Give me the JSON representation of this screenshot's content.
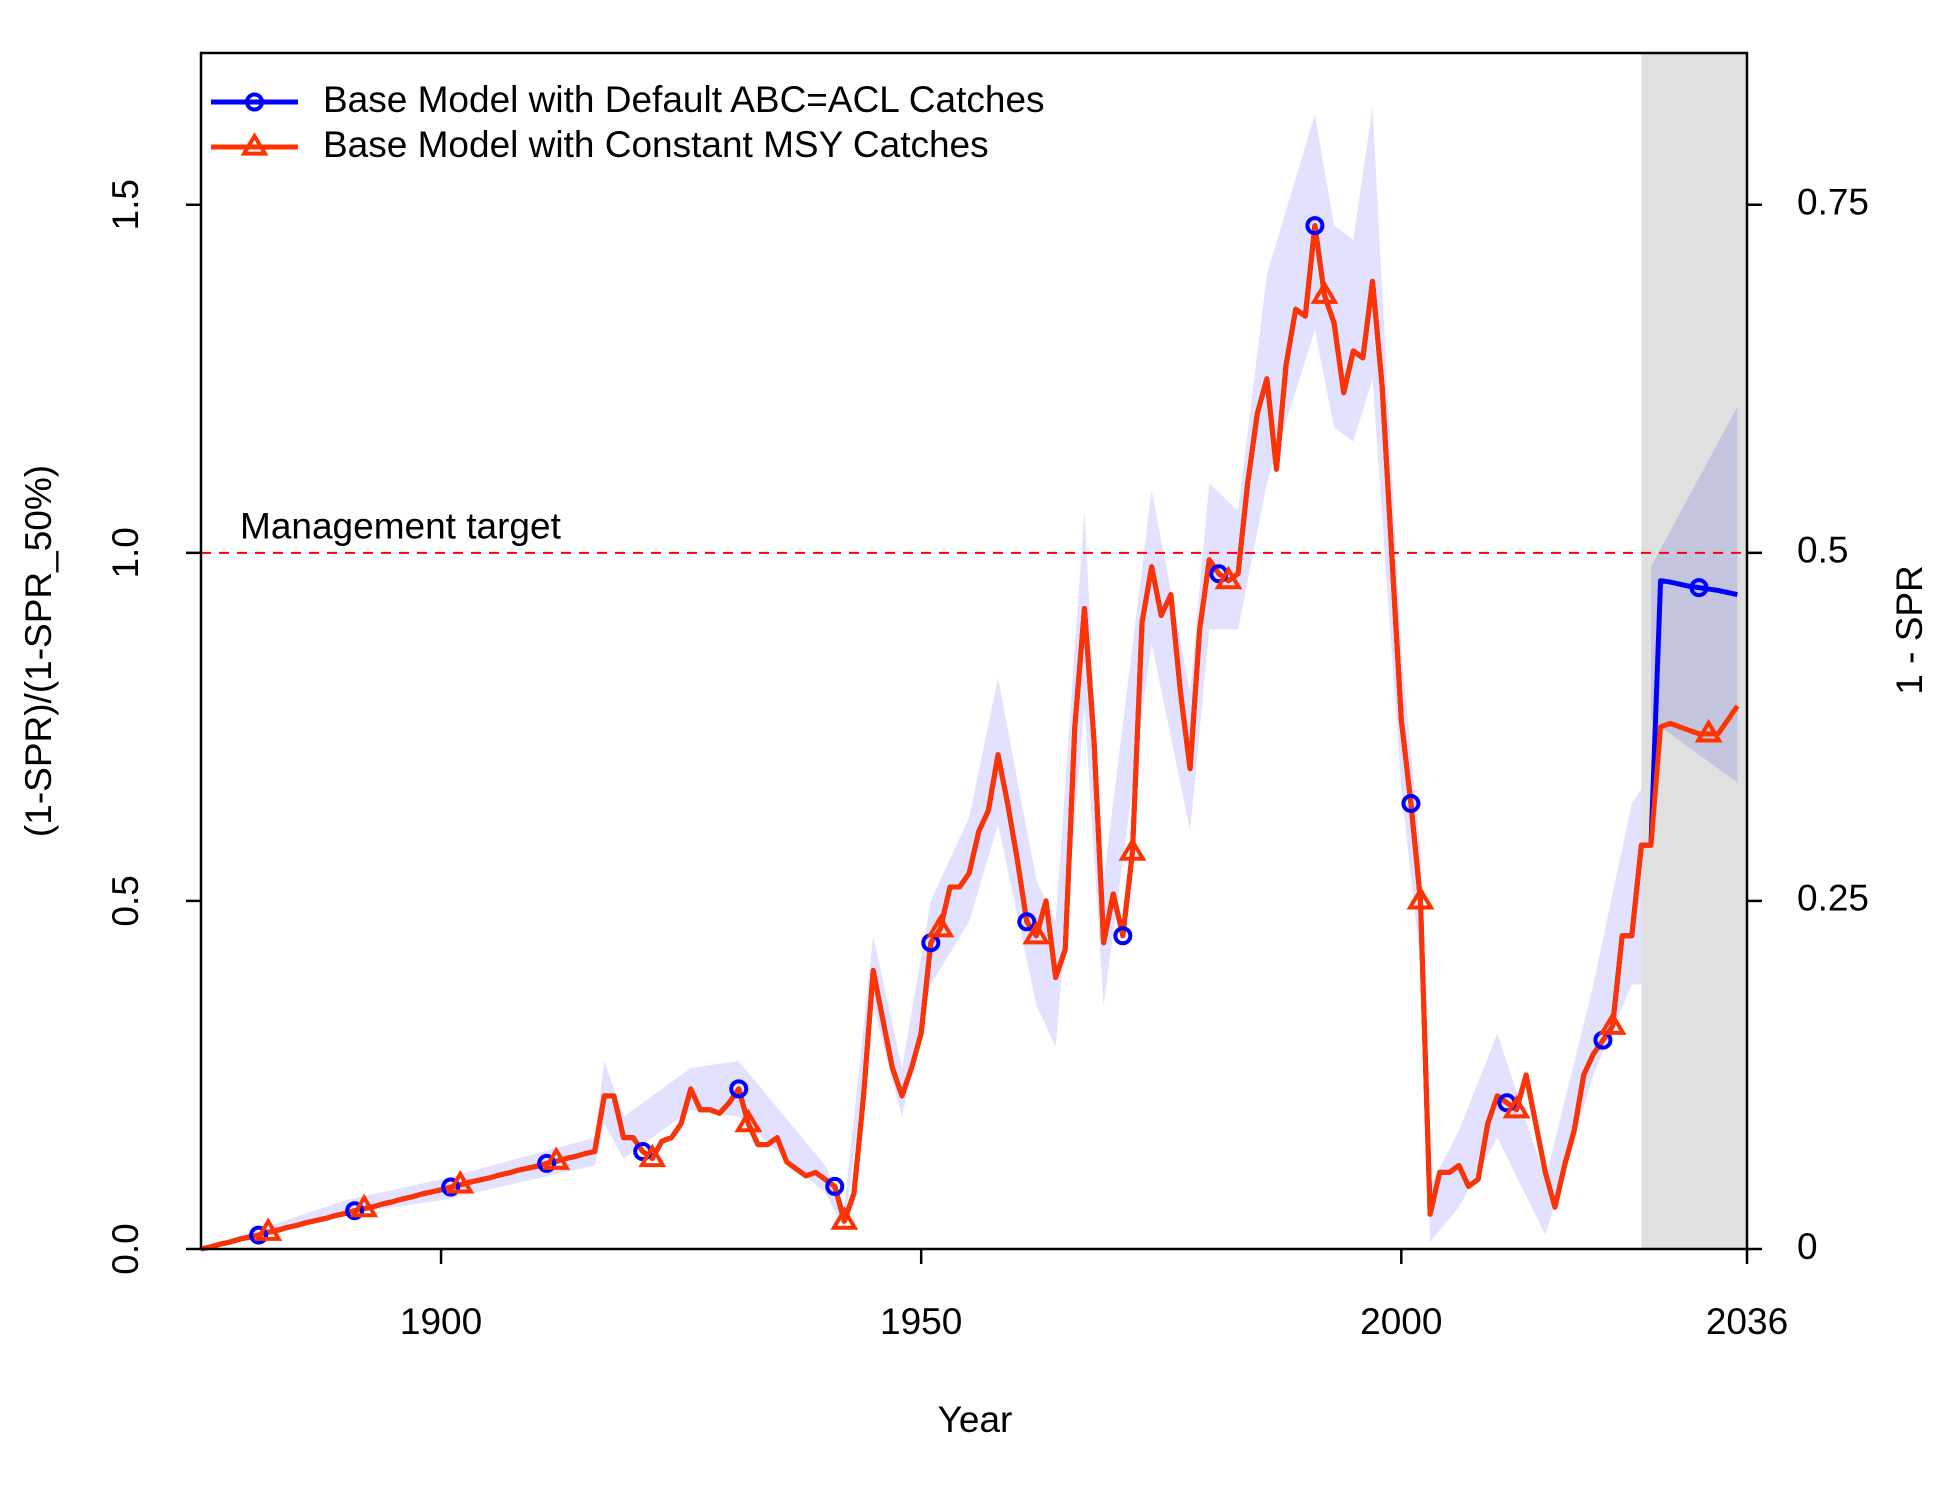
{
  "chart_data": {
    "type": "line",
    "xlabel": "Year",
    "ylabel": "(1-SPR)/(1-SPR_50%)",
    "y2label": "1 - SPR",
    "xlim": [
      1875,
      2036
    ],
    "ylim": [
      0,
      1.718
    ],
    "y2lim": [
      0,
      0.859
    ],
    "xticks": [
      1900,
      1950,
      2000,
      2036
    ],
    "yticks": [
      {
        "value": 0,
        "label": "0.0"
      },
      0.5,
      {
        "value": 1,
        "label": "1.0"
      },
      1.5
    ],
    "y2ticks": [
      0,
      0.25,
      0.5,
      0.75
    ],
    "forecast_start": 2025,
    "forecast_color": "#e0e0e0",
    "reference_line": {
      "value": 1,
      "label": "Management target",
      "color": "#ff0000"
    },
    "legend": "top-left",
    "intervals": [
      {
        "color": "#e2e2ff",
        "x": [
          1875,
          1890,
          1900,
          1916,
          1917,
          1919,
          1926,
          1931,
          1940,
          1942,
          1945,
          1948,
          1951,
          1955,
          1958,
          1962,
          1964,
          1967,
          1969,
          1974,
          1978,
          1980,
          1983,
          1986,
          1991,
          1993,
          1995,
          1997,
          2000,
          2002,
          2003,
          2006,
          2010,
          2015,
          2020,
          2024,
          2025
        ],
        "lower": [
          0,
          0.05,
          0.07,
          0.12,
          0.18,
          0.13,
          0.2,
          0.19,
          0.08,
          0.03,
          0.35,
          0.19,
          0.38,
          0.47,
          0.61,
          0.35,
          0.29,
          0.78,
          0.35,
          0.87,
          0.6,
          0.89,
          0.89,
          1.1,
          1.32,
          1.18,
          1.16,
          1.25,
          0.66,
          0.41,
          0.01,
          0.06,
          0.16,
          0.02,
          0.25,
          0.38,
          0.38
        ],
        "upper": [
          0,
          0.07,
          0.1,
          0.16,
          0.27,
          0.19,
          0.26,
          0.27,
          0.12,
          0.06,
          0.45,
          0.26,
          0.5,
          0.62,
          0.82,
          0.53,
          0.47,
          1.06,
          0.53,
          1.09,
          0.8,
          1.1,
          1.06,
          1.4,
          1.63,
          1.47,
          1.45,
          1.64,
          0.86,
          0.57,
          0.09,
          0.17,
          0.31,
          0.1,
          0.38,
          0.64,
          0.66
        ]
      },
      {
        "color": "#b8bcdc",
        "x": [
          2026,
          2035
        ],
        "lower": [
          0.76,
          0.67
        ],
        "upper": [
          0.98,
          1.21
        ]
      }
    ],
    "x": [
      1875,
      1876,
      1877,
      1878,
      1879,
      1880,
      1881,
      1882,
      1883,
      1884,
      1885,
      1886,
      1887,
      1888,
      1889,
      1890,
      1891,
      1892,
      1893,
      1894,
      1895,
      1896,
      1897,
      1898,
      1899,
      1900,
      1901,
      1902,
      1903,
      1904,
      1905,
      1906,
      1907,
      1908,
      1909,
      1910,
      1911,
      1912,
      1913,
      1914,
      1915,
      1916,
      1917,
      1918,
      1919,
      1920,
      1921,
      1922,
      1923,
      1924,
      1925,
      1926,
      1927,
      1928,
      1929,
      1930,
      1931,
      1932,
      1933,
      1934,
      1935,
      1936,
      1937,
      1938,
      1939,
      1940,
      1941,
      1942,
      1943,
      1944,
      1945,
      1946,
      1947,
      1948,
      1949,
      1950,
      1951,
      1952,
      1953,
      1954,
      1955,
      1956,
      1957,
      1958,
      1959,
      1960,
      1961,
      1962,
      1963,
      1964,
      1965,
      1966,
      1967,
      1968,
      1969,
      1970,
      1971,
      1972,
      1973,
      1974,
      1975,
      1976,
      1977,
      1978,
      1979,
      1980,
      1981,
      1982,
      1983,
      1984,
      1985,
      1986,
      1987,
      1988,
      1989,
      1990,
      1991,
      1992,
      1993,
      1994,
      1995,
      1996,
      1997,
      1998,
      1999,
      2000,
      2001,
      2002,
      2003,
      2004,
      2005,
      2006,
      2007,
      2008,
      2009,
      2010,
      2011,
      2012,
      2013,
      2014,
      2015,
      2016,
      2017,
      2018,
      2019,
      2020,
      2021,
      2022,
      2023,
      2024,
      2025,
      2026,
      2027,
      2028,
      2029,
      2030,
      2031,
      2032,
      2033,
      2034,
      2035
    ],
    "series": [
      {
        "name": "Base Model with Default ABC=ACL Catches",
        "color": "#0000ff",
        "marker": "circle",
        "values": [
          0,
          0.003,
          0.007,
          0.01,
          0.014,
          0.017,
          0.02,
          0.024,
          0.027,
          0.031,
          0.034,
          0.038,
          0.041,
          0.044,
          0.048,
          0.051,
          0.055,
          0.058,
          0.061,
          0.065,
          0.068,
          0.072,
          0.075,
          0.079,
          0.082,
          0.085,
          0.089,
          0.092,
          0.096,
          0.099,
          0.102,
          0.106,
          0.109,
          0.113,
          0.116,
          0.119,
          0.123,
          0.126,
          0.13,
          0.133,
          0.137,
          0.14,
          0.22,
          0.22,
          0.16,
          0.16,
          0.14,
          0.13,
          0.155,
          0.16,
          0.18,
          0.23,
          0.2,
          0.2,
          0.195,
          0.21,
          0.23,
          0.18,
          0.15,
          0.15,
          0.16,
          0.125,
          0.115,
          0.105,
          0.11,
          0.1,
          0.09,
          0.04,
          0.08,
          0.22,
          0.4,
          0.33,
          0.26,
          0.22,
          0.26,
          0.31,
          0.44,
          0.46,
          0.52,
          0.52,
          0.54,
          0.6,
          0.63,
          0.71,
          0.64,
          0.56,
          0.47,
          0.45,
          0.5,
          0.39,
          0.43,
          0.75,
          0.92,
          0.73,
          0.44,
          0.51,
          0.45,
          0.57,
          0.9,
          0.98,
          0.91,
          0.94,
          0.8,
          0.69,
          0.89,
          0.99,
          0.97,
          0.96,
          0.97,
          1.1,
          1.2,
          1.25,
          1.12,
          1.27,
          1.35,
          1.34,
          1.47,
          1.37,
          1.33,
          1.23,
          1.29,
          1.28,
          1.39,
          1.24,
          1,
          0.76,
          0.64,
          0.5,
          0.05,
          0.11,
          0.11,
          0.12,
          0.09,
          0.1,
          0.18,
          0.22,
          0.21,
          0.2,
          0.25,
          0.18,
          0.11,
          0.06,
          0.12,
          0.17,
          0.25,
          0.28,
          0.3,
          0.32,
          0.45,
          0.45,
          0.58,
          0.58,
          0.96,
          0.958,
          0.955,
          0.952,
          0.95,
          0.948,
          0.946,
          0.943,
          0.94
        ]
      },
      {
        "name": "Base Model with Constant MSY Catches",
        "color": "#ff3300",
        "marker": "triangle",
        "values": [
          0,
          0.003,
          0.007,
          0.01,
          0.014,
          0.017,
          0.02,
          0.024,
          0.027,
          0.031,
          0.034,
          0.038,
          0.041,
          0.044,
          0.048,
          0.051,
          0.055,
          0.058,
          0.061,
          0.065,
          0.068,
          0.072,
          0.075,
          0.079,
          0.082,
          0.085,
          0.089,
          0.092,
          0.096,
          0.099,
          0.102,
          0.106,
          0.109,
          0.113,
          0.116,
          0.119,
          0.123,
          0.126,
          0.13,
          0.133,
          0.137,
          0.14,
          0.22,
          0.22,
          0.16,
          0.16,
          0.14,
          0.13,
          0.155,
          0.16,
          0.18,
          0.23,
          0.2,
          0.2,
          0.195,
          0.21,
          0.23,
          0.18,
          0.15,
          0.15,
          0.16,
          0.125,
          0.115,
          0.105,
          0.11,
          0.1,
          0.09,
          0.04,
          0.08,
          0.22,
          0.4,
          0.33,
          0.26,
          0.22,
          0.26,
          0.31,
          0.44,
          0.46,
          0.52,
          0.52,
          0.54,
          0.6,
          0.63,
          0.71,
          0.64,
          0.56,
          0.47,
          0.45,
          0.5,
          0.39,
          0.43,
          0.75,
          0.92,
          0.73,
          0.44,
          0.51,
          0.45,
          0.57,
          0.9,
          0.98,
          0.91,
          0.94,
          0.8,
          0.69,
          0.89,
          0.99,
          0.97,
          0.96,
          0.97,
          1.1,
          1.2,
          1.25,
          1.12,
          1.27,
          1.35,
          1.34,
          1.47,
          1.37,
          1.33,
          1.23,
          1.29,
          1.28,
          1.39,
          1.24,
          1,
          0.76,
          0.64,
          0.5,
          0.05,
          0.11,
          0.11,
          0.12,
          0.09,
          0.1,
          0.18,
          0.22,
          0.21,
          0.2,
          0.25,
          0.18,
          0.11,
          0.06,
          0.12,
          0.17,
          0.25,
          0.28,
          0.3,
          0.32,
          0.45,
          0.45,
          0.58,
          0.58,
          0.75,
          0.755,
          0.75,
          0.745,
          0.74,
          0.74,
          0.74,
          0.76,
          0.78
        ]
      }
    ]
  }
}
